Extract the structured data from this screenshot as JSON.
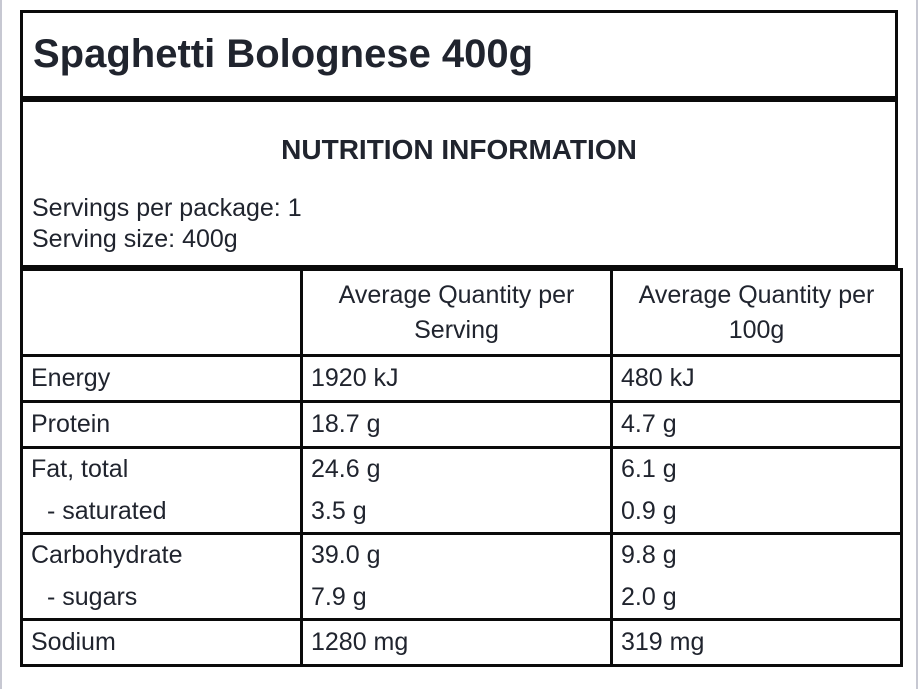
{
  "product": {
    "title": "Spaghetti Bolognese 400g"
  },
  "panel": {
    "heading": "NUTRITION INFORMATION",
    "servings_per_package": {
      "label": "Servings per package:",
      "value": "1"
    },
    "serving_size": {
      "label": "Serving size:",
      "value": "400g"
    }
  },
  "table": {
    "columns": [
      "",
      "Average Quantity per Serving",
      "Average Quantity per 100g"
    ],
    "rows": [
      {
        "nutrient": "Energy",
        "per_serving": "1920 kJ",
        "per_100g": "480 kJ",
        "sub": false,
        "group": 1
      },
      {
        "nutrient": "Protein",
        "per_serving": "18.7 g",
        "per_100g": "4.7 g",
        "sub": false,
        "group": 2
      },
      {
        "nutrient": "Fat, total",
        "per_serving": "24.6 g",
        "per_100g": "6.1 g",
        "sub": false,
        "group": 3
      },
      {
        "nutrient": "- saturated",
        "per_serving": "3.5 g",
        "per_100g": "0.9 g",
        "sub": true,
        "group": 3
      },
      {
        "nutrient": "Carbohydrate",
        "per_serving": "39.0 g",
        "per_100g": "9.8 g",
        "sub": false,
        "group": 4
      },
      {
        "nutrient": "- sugars",
        "per_serving": "7.9 g",
        "per_100g": "2.0 g",
        "sub": true,
        "group": 4
      },
      {
        "nutrient": "Sodium",
        "per_serving": "1280 mg",
        "per_100g": "319 mg",
        "sub": false,
        "group": 5
      }
    ]
  },
  "colors": {
    "text": "#20242e",
    "border": "#0a0a0a",
    "page_edge": "#c7c8d2"
  }
}
